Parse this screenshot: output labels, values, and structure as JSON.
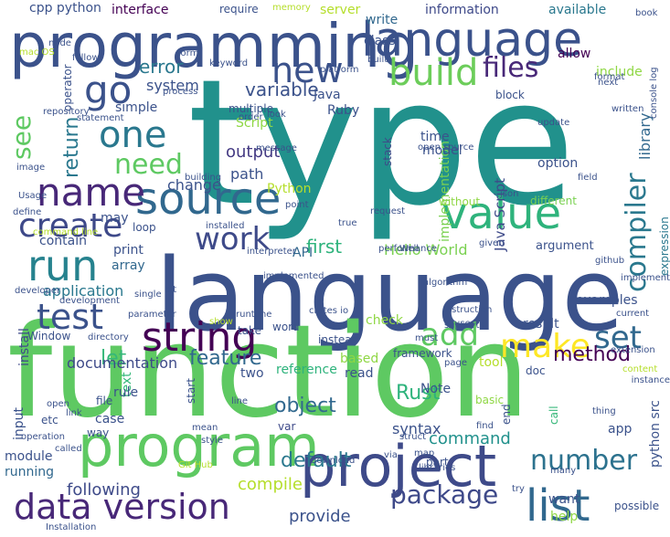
{
  "words": [
    {
      "text": "type",
      "color": "#21918c",
      "vertical": false
    },
    {
      "text": "language",
      "color": "#3b528b",
      "vertical": false
    },
    {
      "text": "function",
      "color": "#5ec962",
      "vertical": false
    },
    {
      "text": "programming",
      "color": "#3b528b",
      "vertical": false
    },
    {
      "text": "language",
      "color": "#3b528b",
      "vertical": false
    },
    {
      "text": "program",
      "color": "#5ec962",
      "vertical": false
    },
    {
      "text": "project",
      "color": "#3e4a89",
      "vertical": false
    },
    {
      "text": "source",
      "color": "#31688e",
      "vertical": false
    },
    {
      "text": "value",
      "color": "#2eb37c",
      "vertical": false
    },
    {
      "text": "string",
      "color": "#440154",
      "vertical": false
    },
    {
      "text": "data version",
      "color": "#482878",
      "vertical": false
    },
    {
      "text": "list",
      "color": "#31688e",
      "vertical": false
    },
    {
      "text": "create",
      "color": "#3e4989",
      "vertical": false
    },
    {
      "text": "compiler",
      "color": "#2a788e",
      "vertical": true
    },
    {
      "text": "name",
      "color": "#482878",
      "vertical": false
    },
    {
      "text": "run",
      "color": "#26828e",
      "vertical": false
    },
    {
      "text": "one",
      "color": "#2a788e",
      "vertical": false
    },
    {
      "text": "build",
      "color": "#6ccd5a",
      "vertical": false
    },
    {
      "text": "test",
      "color": "#3b528b",
      "vertical": false
    },
    {
      "text": "new",
      "color": "#3b528b",
      "vertical": false
    },
    {
      "text": "go",
      "color": "#3b528b",
      "vertical": false
    },
    {
      "text": "set",
      "color": "#31688e",
      "vertical": false
    },
    {
      "text": "make",
      "color": "#fde725",
      "vertical": false
    },
    {
      "text": "add",
      "color": "#5ec962",
      "vertical": false
    },
    {
      "text": "work",
      "color": "#3e4a89",
      "vertical": false
    },
    {
      "text": "number",
      "color": "#2c728e",
      "vertical": false
    },
    {
      "text": "return",
      "color": "#2a788e",
      "vertical": true
    },
    {
      "text": "see",
      "color": "#5ec962",
      "vertical": true
    },
    {
      "text": "files",
      "color": "#482878",
      "vertical": false
    },
    {
      "text": "need",
      "color": "#5ec962",
      "vertical": false
    },
    {
      "text": "package",
      "color": "#3e4989",
      "vertical": false
    },
    {
      "text": "library",
      "color": "#31688e",
      "vertical": true
    },
    {
      "text": "method",
      "color": "#440154",
      "vertical": false
    },
    {
      "text": "feature",
      "color": "#31688e",
      "vertical": false
    },
    {
      "text": "object",
      "color": "#31688e",
      "vertical": false
    },
    {
      "text": "default",
      "color": "#2a788e",
      "vertical": false
    },
    {
      "text": "variable",
      "color": "#3b528b",
      "vertical": false
    },
    {
      "text": "output",
      "color": "#443a83",
      "vertical": false
    },
    {
      "text": "first",
      "color": "#2eb37c",
      "vertical": false
    },
    {
      "text": "Rust",
      "color": "#2eb37c",
      "vertical": false
    },
    {
      "text": "error",
      "color": "#2a788e",
      "vertical": false
    },
    {
      "text": "system",
      "color": "#3b528b",
      "vertical": false
    },
    {
      "text": "let",
      "color": "#35b779",
      "vertical": false
    },
    {
      "text": "path",
      "color": "#3b528b",
      "vertical": false
    },
    {
      "text": "command",
      "color": "#21918c",
      "vertical": false
    },
    {
      "text": "following",
      "color": "#3e4a89",
      "vertical": false
    },
    {
      "text": "provide",
      "color": "#3b528b",
      "vertical": false
    },
    {
      "text": "syntax",
      "color": "#3b528b",
      "vertical": false
    },
    {
      "text": "Hello World",
      "color": "#7ad151",
      "vertical": false
    },
    {
      "text": "documentation",
      "color": "#3e4a89",
      "vertical": false
    },
    {
      "text": "expression",
      "color": "#2a788e",
      "vertical": true
    },
    {
      "text": "implementation",
      "color": "#7ad151",
      "vertical": true
    },
    {
      "text": "Java Script",
      "color": "#3e4a89",
      "vertical": true
    },
    {
      "text": "python src",
      "color": "#3b528b",
      "vertical": true
    },
    {
      "text": "examples",
      "color": "#3b528b",
      "vertical": false
    },
    {
      "text": "application",
      "color": "#2a788e",
      "vertical": false
    },
    {
      "text": "reference",
      "color": "#2eb37c",
      "vertical": false
    },
    {
      "text": "option",
      "color": "#3b528b",
      "vertical": false
    },
    {
      "text": "change",
      "color": "#3b528b",
      "vertical": false
    },
    {
      "text": "compile",
      "color": "#b5de2b",
      "vertical": false
    },
    {
      "text": "simple",
      "color": "#3b528b",
      "vertical": false
    },
    {
      "text": "Script",
      "color": "#8fd744",
      "vertical": false
    },
    {
      "text": "Python",
      "color": "#b5de2b",
      "vertical": false
    },
    {
      "text": "Java",
      "color": "#3b528b",
      "vertical": false
    },
    {
      "text": "interface",
      "color": "#440154",
      "vertical": false
    },
    {
      "text": "cpp python",
      "color": "#3b528b",
      "vertical": false
    },
    {
      "text": "information",
      "color": "#3e4989",
      "vertical": false
    },
    {
      "text": "available",
      "color": "#2a788e",
      "vertical": false
    },
    {
      "text": "include",
      "color": "#8fd744",
      "vertical": false
    },
    {
      "text": "write",
      "color": "#31688e",
      "vertical": false
    },
    {
      "text": "class",
      "color": "#3b528b",
      "vertical": false
    },
    {
      "text": "allow",
      "color": "#440154",
      "vertical": false
    },
    {
      "text": "time",
      "color": "#3b528b",
      "vertical": false
    },
    {
      "text": "model",
      "color": "#3b528b",
      "vertical": false
    },
    {
      "text": "stack",
      "color": "#3e4a89",
      "vertical": true
    },
    {
      "text": "print",
      "color": "#3b528b",
      "vertical": false
    },
    {
      "text": "array",
      "color": "#31688e",
      "vertical": false
    },
    {
      "text": "contain",
      "color": "#3b528b",
      "vertical": false
    },
    {
      "text": "API",
      "color": "#31688e",
      "vertical": false
    },
    {
      "text": "argument",
      "color": "#3b528b",
      "vertical": false
    },
    {
      "text": "check",
      "color": "#8fd744",
      "vertical": false
    },
    {
      "text": "result",
      "color": "#3b528b",
      "vertical": false
    },
    {
      "text": "input",
      "color": "#3b528b",
      "vertical": true
    },
    {
      "text": "install",
      "color": "#3e4a89",
      "vertical": true
    },
    {
      "text": "module",
      "color": "#3b528b",
      "vertical": false
    },
    {
      "text": "running",
      "color": "#31688e",
      "vertical": false
    },
    {
      "text": "want",
      "color": "#3b528b",
      "vertical": false
    },
    {
      "text": "help",
      "color": "#8fd744",
      "vertical": false
    },
    {
      "text": "app",
      "color": "#3b528b",
      "vertical": false
    },
    {
      "text": "Note",
      "color": "#3b528b",
      "vertical": false
    },
    {
      "text": "tool",
      "color": "#b5de2b",
      "vertical": false
    },
    {
      "text": "based",
      "color": "#8fd744",
      "vertical": false
    },
    {
      "text": "read",
      "color": "#3b528b",
      "vertical": false
    },
    {
      "text": "end",
      "color": "#3b528b",
      "vertical": true
    },
    {
      "text": "call",
      "color": "#35b779",
      "vertical": true
    },
    {
      "text": "text",
      "color": "#35b779",
      "vertical": true
    },
    {
      "text": "var",
      "color": "#3e4a89",
      "vertical": false
    },
    {
      "text": "case",
      "color": "#3b528b",
      "vertical": false
    },
    {
      "text": "rule",
      "color": "#3b528b",
      "vertical": false
    },
    {
      "text": "start",
      "color": "#3b528b",
      "vertical": true
    },
    {
      "text": "two",
      "color": "#3b528b",
      "vertical": false
    },
    {
      "text": "word",
      "color": "#3b528b",
      "vertical": false
    },
    {
      "text": "Window",
      "color": "#3b528b",
      "vertical": false
    },
    {
      "text": "operator",
      "color": "#3b528b",
      "vertical": true
    },
    {
      "text": "may",
      "color": "#3b528b",
      "vertical": false
    },
    {
      "text": "loop",
      "color": "#3b528b",
      "vertical": false
    },
    {
      "text": "file",
      "color": "#3b528b",
      "vertical": false
    },
    {
      "text": "point",
      "color": "#3b528b",
      "vertical": false
    },
    {
      "text": "true",
      "color": "#3b528b",
      "vertical": false
    },
    {
      "text": "different",
      "color": "#7ad151",
      "vertical": false
    },
    {
      "text": "without",
      "color": "#8fd744",
      "vertical": false
    },
    {
      "text": "console log",
      "color": "#3b528b",
      "vertical": true
    },
    {
      "text": "block",
      "color": "#3b528b",
      "vertical": false
    },
    {
      "text": "update",
      "color": "#3b528b",
      "vertical": false
    },
    {
      "text": "Ruby",
      "color": "#3b528b",
      "vertical": false
    },
    {
      "text": "multiple",
      "color": "#3b528b",
      "vertical": false
    },
    {
      "text": "message",
      "color": "#3b528b",
      "vertical": false
    },
    {
      "text": "image",
      "color": "#3b528b",
      "vertical": false
    },
    {
      "text": "define",
      "color": "#3b528b",
      "vertical": false
    },
    {
      "text": "command line",
      "color": "#b5de2b",
      "vertical": false
    },
    {
      "text": "etc",
      "color": "#3b528b",
      "vertical": false
    },
    {
      "text": "link",
      "color": "#3b528b",
      "vertical": false
    },
    {
      "text": "mean",
      "color": "#3b528b",
      "vertical": false
    },
    {
      "text": "style",
      "color": "#3b528b",
      "vertical": false
    },
    {
      "text": "Git Hub",
      "color": "#b5de2b",
      "vertical": false
    },
    {
      "text": "map",
      "color": "#3b528b",
      "vertical": false
    },
    {
      "text": "part",
      "color": "#3b528b",
      "vertical": false
    },
    {
      "text": "find",
      "color": "#3b528b",
      "vertical": false
    },
    {
      "text": "basic",
      "color": "#8fd744",
      "vertical": false
    },
    {
      "text": "struct",
      "color": "#3b528b",
      "vertical": false
    },
    {
      "text": "way",
      "color": "#3b528b",
      "vertical": false
    },
    {
      "text": "take",
      "color": "#3b528b",
      "vertical": false
    },
    {
      "text": "instead",
      "color": "#3b528b",
      "vertical": false
    },
    {
      "text": "show",
      "color": "#b5de2b",
      "vertical": false
    },
    {
      "text": "framework",
      "color": "#3b528b",
      "vertical": false
    },
    {
      "text": "page",
      "color": "#3b528b",
      "vertical": false
    },
    {
      "text": "via",
      "color": "#3b528b",
      "vertical": false
    },
    {
      "text": "doc",
      "color": "#3b528b",
      "vertical": false
    },
    {
      "text": "uses",
      "color": "#3b528b",
      "vertical": false
    },
    {
      "text": "must",
      "color": "#3b528b",
      "vertical": false
    },
    {
      "text": "current",
      "color": "#3b528b",
      "vertical": false
    },
    {
      "text": "extension",
      "color": "#3b528b",
      "vertical": false
    },
    {
      "text": "content",
      "color": "#b5de2b",
      "vertical": false
    },
    {
      "text": "instance",
      "color": "#3b528b",
      "vertical": false
    },
    {
      "text": "thing",
      "color": "#3b528b",
      "vertical": false
    },
    {
      "text": "many",
      "color": "#3b528b",
      "vertical": false
    },
    {
      "text": "try",
      "color": "#3b528b",
      "vertical": false
    },
    {
      "text": "possible",
      "color": "#3b528b",
      "vertical": false
    },
    {
      "text": "libraries",
      "color": "#3b528b",
      "vertical": false
    },
    {
      "text": "download",
      "color": "#3b528b",
      "vertical": false
    },
    {
      "text": "Installation",
      "color": "#3b528b",
      "vertical": false
    },
    {
      "text": "called",
      "color": "#3b528b",
      "vertical": false
    },
    {
      "text": "operation",
      "color": "#3b528b",
      "vertical": false
    },
    {
      "text": "open",
      "color": "#3b528b",
      "vertical": false
    },
    {
      "text": "line",
      "color": "#3b528b",
      "vertical": false
    },
    {
      "text": "developer",
      "color": "#3b528b",
      "vertical": false
    },
    {
      "text": "development",
      "color": "#3b528b",
      "vertical": false
    },
    {
      "text": "single",
      "color": "#3b528b",
      "vertical": false
    },
    {
      "text": "bit",
      "color": "#3b528b",
      "vertical": false
    },
    {
      "text": "parameter",
      "color": "#3b528b",
      "vertical": false
    },
    {
      "text": "directory",
      "color": "#3b528b",
      "vertical": false
    },
    {
      "text": "runtime",
      "color": "#3b528b",
      "vertical": false
    },
    {
      "text": "interpreter",
      "color": "#3b528b",
      "vertical": false
    },
    {
      "text": "implemented",
      "color": "#3b528b",
      "vertical": false
    },
    {
      "text": "installed",
      "color": "#3b528b",
      "vertical": false
    },
    {
      "text": "performance",
      "color": "#3b528b",
      "vertical": false
    },
    {
      "text": "crates io",
      "color": "#3b528b",
      "vertical": false
    },
    {
      "text": "algorithm",
      "color": "#3b528b",
      "vertical": false
    },
    {
      "text": "supports",
      "color": "#3b528b",
      "vertical": false
    },
    {
      "text": "instruction",
      "color": "#3b528b",
      "vertical": false
    },
    {
      "text": "github",
      "color": "#3b528b",
      "vertical": false
    },
    {
      "text": "implement",
      "color": "#3b528b",
      "vertical": false
    },
    {
      "text": "Well",
      "color": "#3b528b",
      "vertical": false
    },
    {
      "text": "given",
      "color": "#3b528b",
      "vertical": false
    },
    {
      "text": "request",
      "color": "#3b528b",
      "vertical": false
    },
    {
      "text": "json",
      "color": "#3b528b",
      "vertical": false
    },
    {
      "text": "open source",
      "color": "#3b528b",
      "vertical": false
    },
    {
      "text": "field",
      "color": "#3b528b",
      "vertical": false
    },
    {
      "text": "written",
      "color": "#3b528b",
      "vertical": false
    },
    {
      "text": "format",
      "color": "#3b528b",
      "vertical": false
    },
    {
      "text": "next",
      "color": "#3b528b",
      "vertical": false
    },
    {
      "text": "book",
      "color": "#3b528b",
      "vertical": false
    },
    {
      "text": "server",
      "color": "#b5de2b",
      "vertical": false
    },
    {
      "text": "require",
      "color": "#3b528b",
      "vertical": false
    },
    {
      "text": "memory",
      "color": "#b5de2b",
      "vertical": false
    },
    {
      "text": "node",
      "color": "#3b528b",
      "vertical": false
    },
    {
      "text": "mac OS",
      "color": "#b5de2b",
      "vertical": false
    },
    {
      "text": "form",
      "color": "#3b528b",
      "vertical": false
    },
    {
      "text": "follow",
      "color": "#3b528b",
      "vertical": false
    },
    {
      "text": "keyword",
      "color": "#3b528b",
      "vertical": false
    },
    {
      "text": "platform",
      "color": "#3b528b",
      "vertical": false
    },
    {
      "text": "built",
      "color": "#3b528b",
      "vertical": false
    },
    {
      "text": "process",
      "color": "#3b528b",
      "vertical": false
    },
    {
      "text": "repository",
      "color": "#3b528b",
      "vertical": false
    },
    {
      "text": "statement",
      "color": "#3b528b",
      "vertical": false
    },
    {
      "text": "order",
      "color": "#3b528b",
      "vertical": false
    },
    {
      "text": "look",
      "color": "#3b528b",
      "vertical": false
    },
    {
      "text": "building",
      "color": "#3b528b",
      "vertical": false
    },
    {
      "text": "Usage",
      "color": "#3b528b",
      "vertical": false
    }
  ]
}
